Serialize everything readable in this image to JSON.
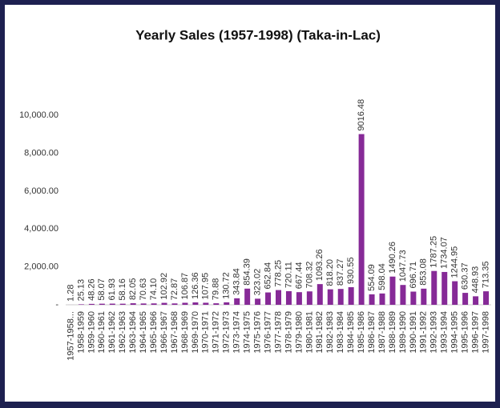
{
  "chart_data": {
    "type": "bar",
    "title": "Yearly Sales  (1957-1998) (Taka-in-Lac)",
    "categories": [
      "1957-1958...",
      "1958-1959",
      "1959-1960",
      "1960-1961",
      "1961-1962",
      "1962-1963",
      "1963-1964",
      "1964-1965",
      "1965-1966",
      "1966-1967",
      "1967-1968",
      "1968-1969",
      "1969-1970",
      "1970-1971",
      "1971-1972",
      "1972-1973",
      "1973-1974",
      "1974-1975",
      "1975-1976",
      "1976-1977",
      "1977-1978",
      "1978-1979",
      "1979-1980",
      "1980-1981",
      "1981-1982",
      "1982-1983",
      "1983-1984",
      "1984-1985",
      "1985-1986",
      "1986-1987",
      "1987-1988",
      "1988-1989",
      "1989-1990",
      "1990-1991",
      "1991-1992",
      "1992-1993",
      "1993-1994",
      "1994-1995",
      "1995-1996",
      "1996-1997",
      "1997-1998"
    ],
    "values": [
      1.28,
      25.13,
      48.26,
      58.07,
      61.93,
      58.16,
      82.05,
      70.63,
      74.1,
      102.92,
      72.87,
      106.87,
      126.36,
      107.95,
      79.88,
      130.72,
      343.84,
      854.39,
      323.02,
      652.84,
      778.25,
      720.11,
      667.44,
      708.32,
      1093.26,
      818.2,
      837.27,
      930.55,
      9016.48,
      554.09,
      598.04,
      1490.26,
      1047.73,
      696.71,
      853.08,
      1787.25,
      1734.07,
      1244.95,
      630.37,
      448.93,
      713.35
    ],
    "value_labels": [
      "1.28",
      "25.13",
      "48.26",
      "58.07",
      "61.93",
      "58.16",
      "82.05",
      "70.63",
      "74.10",
      "102.92",
      "72.87",
      "106.87",
      "126.36",
      "107.95",
      "79.88",
      "130.72",
      "343.84",
      "854.39",
      "323.02",
      "652.84",
      "778.25",
      "720.11",
      "667.44",
      "708.32",
      "1093.26",
      "818.20",
      "837.27",
      "930.55",
      "9016.48",
      "554.09",
      "598.04",
      "1490.26",
      "1047.73",
      "696.71",
      "853.08",
      "1787.25",
      "1734.07",
      "1244.95",
      "630.37",
      "448.93",
      "713.35"
    ],
    "color": "#862a97",
    "ylim": [
      0,
      12000
    ],
    "yticks": [
      {
        "value": 0,
        "label": "-"
      },
      {
        "value": 2000,
        "label": "2,000.00"
      },
      {
        "value": 4000,
        "label": "4,000.00"
      },
      {
        "value": 6000,
        "label": "6,000.00"
      },
      {
        "value": 8000,
        "label": "8,000.00"
      },
      {
        "value": 10000,
        "label": "10,000.00"
      }
    ],
    "grid": false
  }
}
